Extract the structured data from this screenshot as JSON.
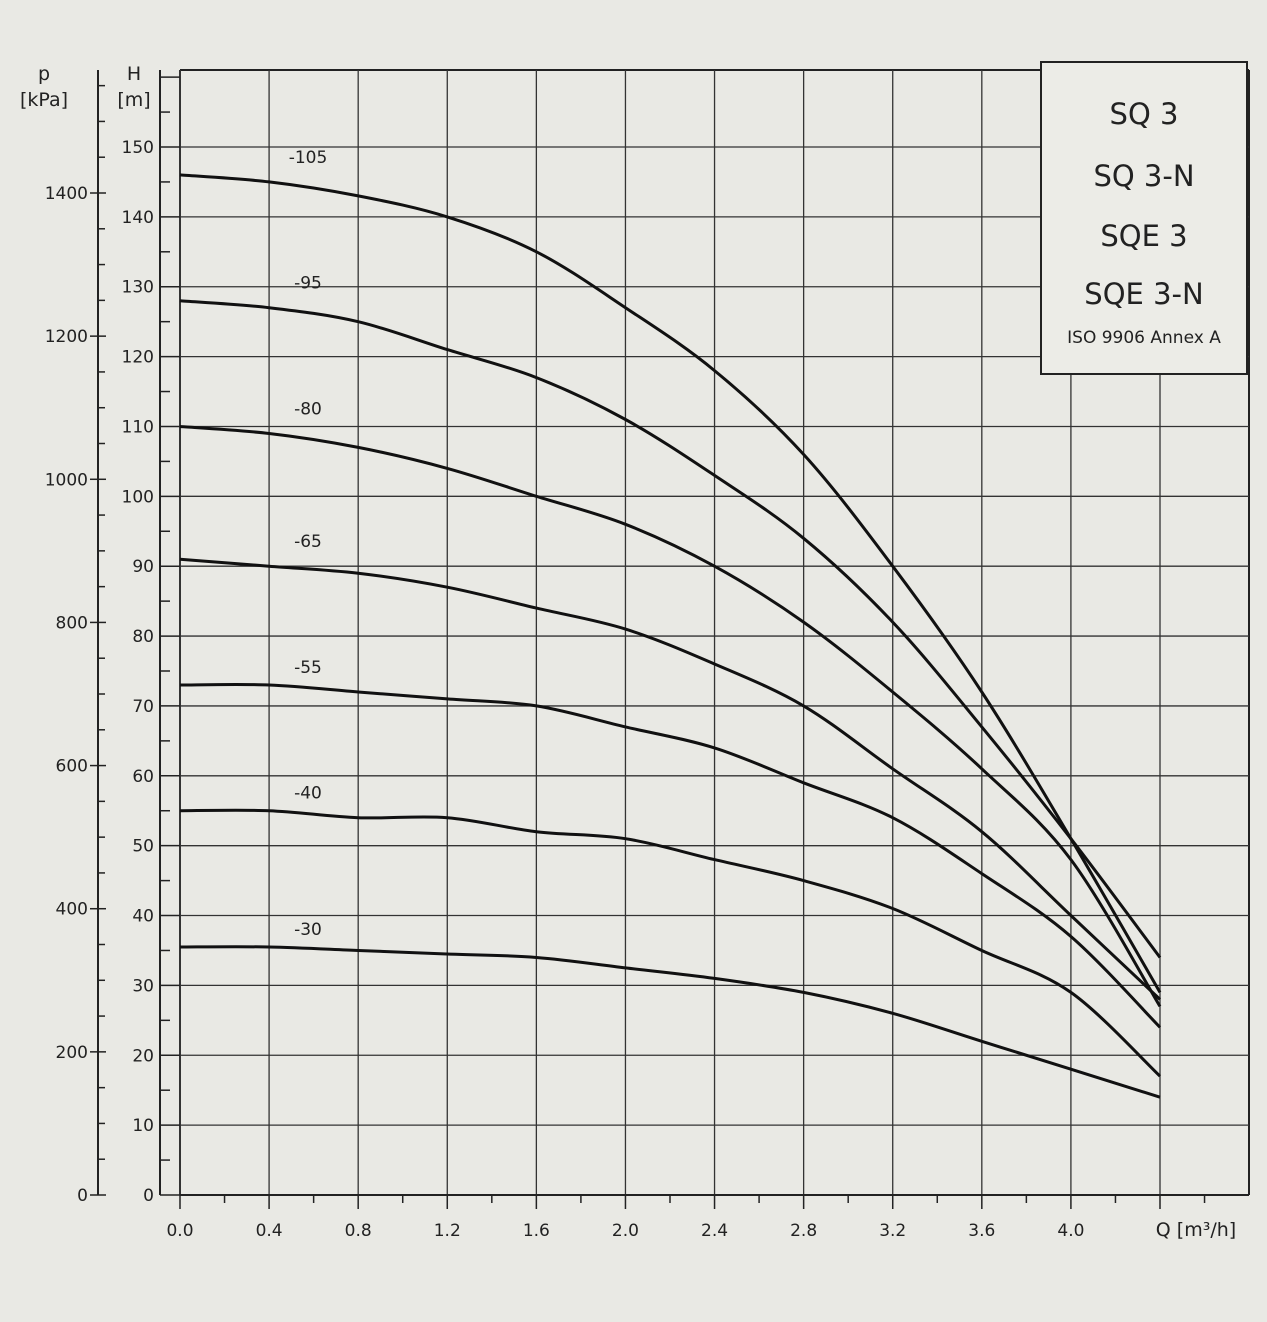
{
  "chart_data": {
    "type": "line",
    "title": "",
    "legend": {
      "entries": [
        "SQ 3",
        "SQ 3-N",
        "SQE 3",
        "SQE 3-N"
      ],
      "note": "ISO 9906 Annex A",
      "placement": "top-right"
    },
    "xlabel": "Q [m³/h]",
    "ylabel_left": {
      "symbol": "p",
      "unit": "[kPa]"
    },
    "ylabel_right": {
      "symbol": "H",
      "unit": "[m]"
    },
    "xlim": [
      0,
      4.8
    ],
    "ylim_H": [
      0,
      160
    ],
    "ylim_p": [
      0,
      1570
    ],
    "x_ticks": [
      "0.0",
      "0.4",
      "0.8",
      "1.2",
      "1.6",
      "2.0",
      "2.4",
      "2.8",
      "3.2",
      "3.6",
      "4.0"
    ],
    "H_ticks": [
      "0",
      "10",
      "20",
      "30",
      "40",
      "50",
      "60",
      "70",
      "80",
      "90",
      "100",
      "110",
      "120",
      "130",
      "140",
      "150"
    ],
    "p_ticks": [
      "0",
      "200",
      "400",
      "600",
      "800",
      "1000",
      "1200",
      "1400"
    ],
    "grid": true,
    "series": [
      {
        "name": "-105",
        "x": [
          0,
          0.4,
          0.8,
          1.2,
          1.6,
          2.0,
          2.4,
          2.8,
          3.2,
          3.6,
          4.0,
          4.4
        ],
        "values": [
          146,
          145,
          143,
          140,
          135,
          127,
          118,
          106,
          90,
          72,
          51,
          29
        ]
      },
      {
        "name": "-95",
        "x": [
          0,
          0.4,
          0.8,
          1.2,
          1.6,
          2.0,
          2.4,
          2.8,
          3.2,
          3.6,
          4.0,
          4.4
        ],
        "values": [
          128,
          127,
          125,
          121,
          117,
          111,
          103,
          94,
          82,
          67,
          51,
          34
        ]
      },
      {
        "name": "-80",
        "x": [
          0,
          0.4,
          0.8,
          1.2,
          1.6,
          2.0,
          2.4,
          2.8,
          3.2,
          3.6,
          4.0,
          4.4
        ],
        "values": [
          110,
          109,
          107,
          104,
          100,
          96,
          90,
          82,
          72,
          61,
          48,
          27
        ]
      },
      {
        "name": "-65",
        "x": [
          0,
          0.4,
          0.8,
          1.2,
          1.6,
          2.0,
          2.4,
          2.8,
          3.2,
          3.6,
          4.0,
          4.4
        ],
        "values": [
          91,
          90,
          89,
          87,
          84,
          81,
          76,
          70,
          61,
          52,
          40,
          28
        ]
      },
      {
        "name": "-55",
        "x": [
          0,
          0.4,
          0.8,
          1.2,
          1.6,
          2.0,
          2.4,
          2.8,
          3.2,
          3.6,
          4.0,
          4.4
        ],
        "values": [
          73,
          73,
          72,
          71,
          70,
          67,
          64,
          59,
          54,
          46,
          37,
          24
        ]
      },
      {
        "name": "-40",
        "x": [
          0,
          0.4,
          0.8,
          1.2,
          1.6,
          2.0,
          2.4,
          2.8,
          3.2,
          3.6,
          4.0,
          4.4
        ],
        "values": [
          55,
          55,
          54,
          54,
          52,
          51,
          48,
          45,
          41,
          35,
          29,
          17
        ]
      },
      {
        "name": "-30",
        "x": [
          0,
          0.4,
          0.8,
          1.2,
          1.6,
          2.0,
          2.4,
          2.8,
          3.2,
          3.6,
          4.0,
          4.4
        ],
        "values": [
          35.5,
          35.5,
          35,
          34.5,
          34,
          32.5,
          31,
          29,
          26,
          22,
          18,
          14
        ]
      }
    ]
  }
}
